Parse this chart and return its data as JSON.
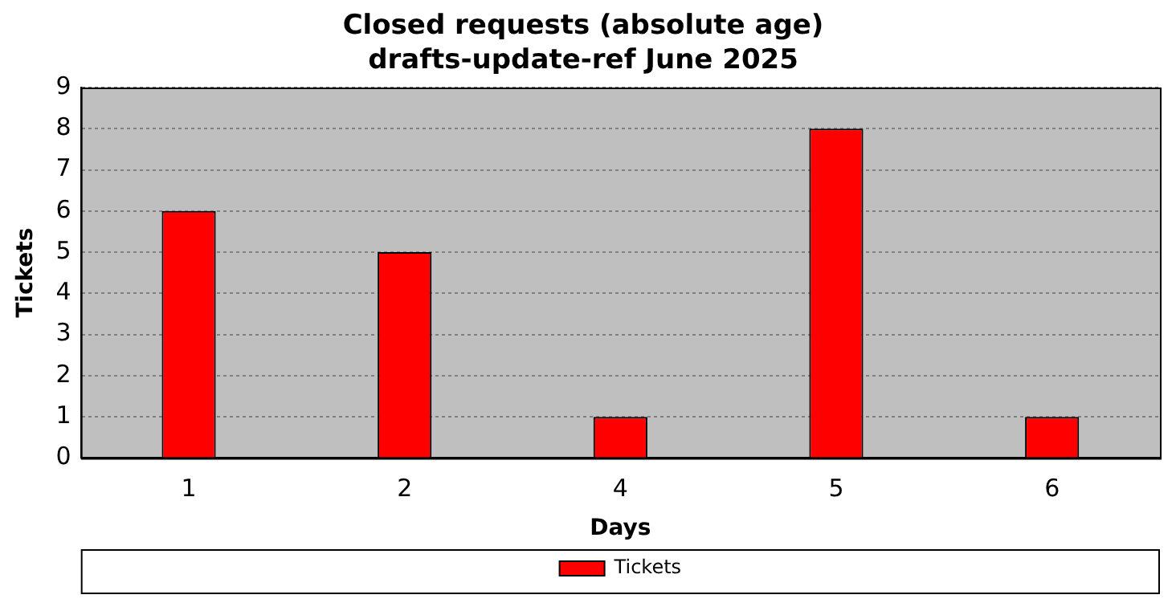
{
  "chart_data": {
    "type": "bar",
    "title": "Closed requests (absolute age)\ndrafts-update-ref June 2025",
    "xlabel": "Days",
    "ylabel": "Tickets",
    "categories": [
      "1",
      "2",
      "4",
      "5",
      "6"
    ],
    "series": [
      {
        "name": "Tickets",
        "color": "#ff0000",
        "values": [
          6,
          5,
          1,
          8,
          1
        ]
      }
    ],
    "ylim": [
      0,
      9
    ],
    "yticks": [
      0,
      1,
      2,
      3,
      4,
      5,
      6,
      7,
      8,
      9
    ],
    "grid": "y",
    "legend": "bottom"
  }
}
